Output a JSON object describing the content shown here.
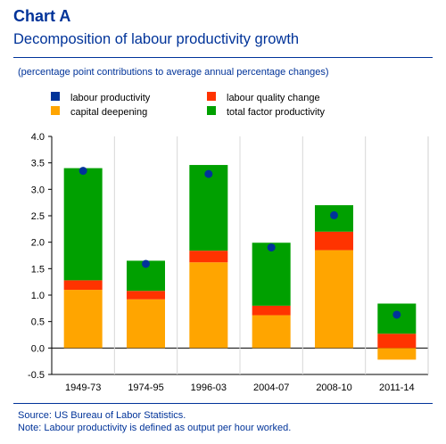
{
  "header": {
    "title": "Chart A",
    "subtitle": "Decomposition of labour productivity growth",
    "units_note": "(percentage point contributions to average annual percentage changes)"
  },
  "footer": {
    "source": "Source: US Bureau of Labor Statistics.",
    "note": "Note: Labour productivity is defined as output per hour worked."
  },
  "chart_data": {
    "type": "bar",
    "stacked": true,
    "title": "Decomposition of labour productivity growth",
    "categories": [
      "1949-73",
      "1974-95",
      "1996-03",
      "2004-07",
      "2008-10",
      "2011-14"
    ],
    "ylim": [
      -0.5,
      4.0
    ],
    "yticks": [
      "4.0",
      "3.5",
      "3.0",
      "2.5",
      "2.0",
      "1.5",
      "1.0",
      "0.5",
      "0.0",
      "-0.5"
    ],
    "ytick_values": [
      4.0,
      3.5,
      3.0,
      2.5,
      2.0,
      1.5,
      1.0,
      0.5,
      0.0,
      -0.5
    ],
    "grid": "vertical separators between categories",
    "legend_position": "top",
    "series": [
      {
        "name": "capital deepening",
        "kind": "bar",
        "color": "#FFA500",
        "values": [
          1.1,
          0.92,
          1.62,
          0.62,
          1.85,
          -0.22
        ]
      },
      {
        "name": "labour quality change",
        "kind": "bar",
        "color": "#FF3300",
        "values": [
          0.18,
          0.16,
          0.22,
          0.18,
          0.35,
          0.27
        ]
      },
      {
        "name": "total factor productivity",
        "kind": "bar",
        "color": "#00A000",
        "values": [
          2.12,
          0.57,
          1.62,
          1.19,
          0.5,
          0.57
        ]
      },
      {
        "name": "labour productivity",
        "kind": "marker",
        "color": "#003399",
        "values": [
          3.35,
          1.59,
          3.29,
          1.9,
          2.51,
          0.63
        ]
      }
    ],
    "legend": [
      {
        "label": "labour productivity",
        "color": "#003399"
      },
      {
        "label": "labour quality change",
        "color": "#FF3300"
      },
      {
        "label": "capital deepening",
        "color": "#FFA500"
      },
      {
        "label": "total factor productivity",
        "color": "#00A000"
      }
    ]
  }
}
